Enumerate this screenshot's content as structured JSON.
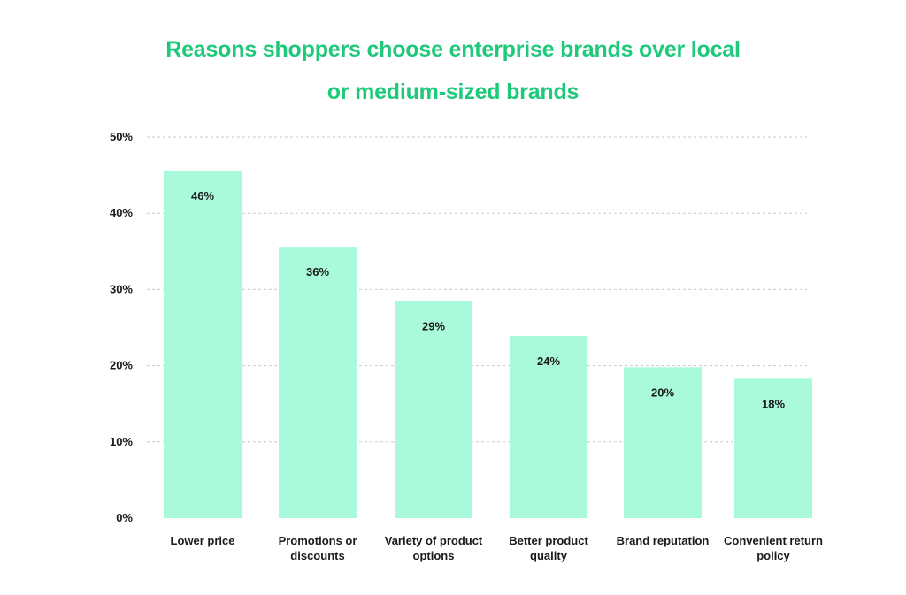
{
  "chart_data": {
    "type": "bar",
    "title_lines": [
      "Reasons shoppers choose enterprise brands over local",
      "or medium-sized brands"
    ],
    "categories": [
      [
        "Lower price"
      ],
      [
        "Promotions or",
        "discounts"
      ],
      [
        "Variety of product",
        "options"
      ],
      [
        "Better product",
        "quality"
      ],
      [
        "Brand reputation"
      ],
      [
        "Convenient return",
        "policy"
      ]
    ],
    "values": [
      45.6,
      35.6,
      28.5,
      23.9,
      19.8,
      18.3
    ],
    "value_labels": [
      "46%",
      "36%",
      "29%",
      "24%",
      "20%",
      "18%"
    ],
    "yticks": [
      0,
      10,
      20,
      30,
      40,
      50
    ],
    "ytick_labels": [
      "0%",
      "10%",
      "20%",
      "30%",
      "40%",
      "50%"
    ],
    "ylim": [
      0,
      50
    ],
    "grid": true,
    "colors": {
      "bar": "#a8fadb",
      "title": "#1ec97a",
      "grid": "#c9c9c9",
      "text": "#1a1a1a"
    }
  }
}
